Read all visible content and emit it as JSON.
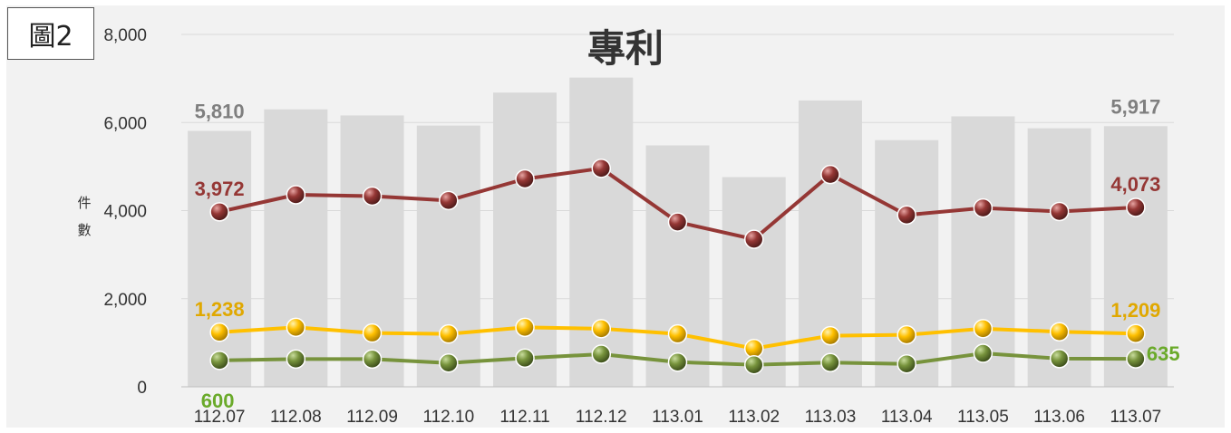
{
  "figure_label": "圖2",
  "chart_data": {
    "type": "bar+line",
    "title": "專利",
    "ylabel": "件數",
    "ylim": [
      0,
      8000
    ],
    "yticks": [
      "0",
      "2,000",
      "4,000",
      "6,000",
      "8,000"
    ],
    "ytick_values": [
      0,
      2000,
      4000,
      6000,
      8000
    ],
    "categories": [
      "112.07",
      "112.08",
      "112.09",
      "112.10",
      "112.11",
      "112.12",
      "113.01",
      "113.02",
      "113.03",
      "113.04",
      "113.05",
      "113.06",
      "113.07"
    ],
    "grid": true,
    "bars": {
      "color": "#d9d9d9",
      "values": [
        5810,
        6300,
        6160,
        5930,
        6680,
        7020,
        5480,
        4760,
        6500,
        5600,
        6140,
        5870,
        5917
      ],
      "labels": [
        "5,810",
        "",
        "",
        "",
        "",
        "",
        "",
        "",
        "",
        "",
        "",
        "",
        "5,917"
      ],
      "label_color": "#7f7f7f"
    },
    "series": [
      {
        "color": "#953735",
        "label_color": "#953735",
        "values": [
          3972,
          4360,
          4330,
          4230,
          4720,
          4960,
          3740,
          3350,
          4820,
          3900,
          4060,
          3980,
          4073
        ],
        "labels": [
          "3,972",
          "",
          "",
          "",
          "",
          "",
          "",
          "",
          "",
          "",
          "",
          "",
          "4,073"
        ]
      },
      {
        "color": "#ffc000",
        "label_color": "#e0a800",
        "values": [
          1238,
          1350,
          1220,
          1200,
          1350,
          1320,
          1200,
          870,
          1160,
          1180,
          1320,
          1250,
          1209
        ],
        "labels": [
          "1,238",
          "",
          "",
          "",
          "",
          "",
          "",
          "",
          "",
          "",
          "",
          "",
          "1,209"
        ]
      },
      {
        "color": "#77933c",
        "label_color": "#6aaa2a",
        "values": [
          600,
          630,
          630,
          540,
          650,
          740,
          560,
          500,
          550,
          520,
          760,
          640,
          635
        ],
        "labels": [
          "600",
          "",
          "",
          "",
          "",
          "",
          "",
          "",
          "",
          "",
          "",
          "",
          "635"
        ]
      }
    ]
  }
}
